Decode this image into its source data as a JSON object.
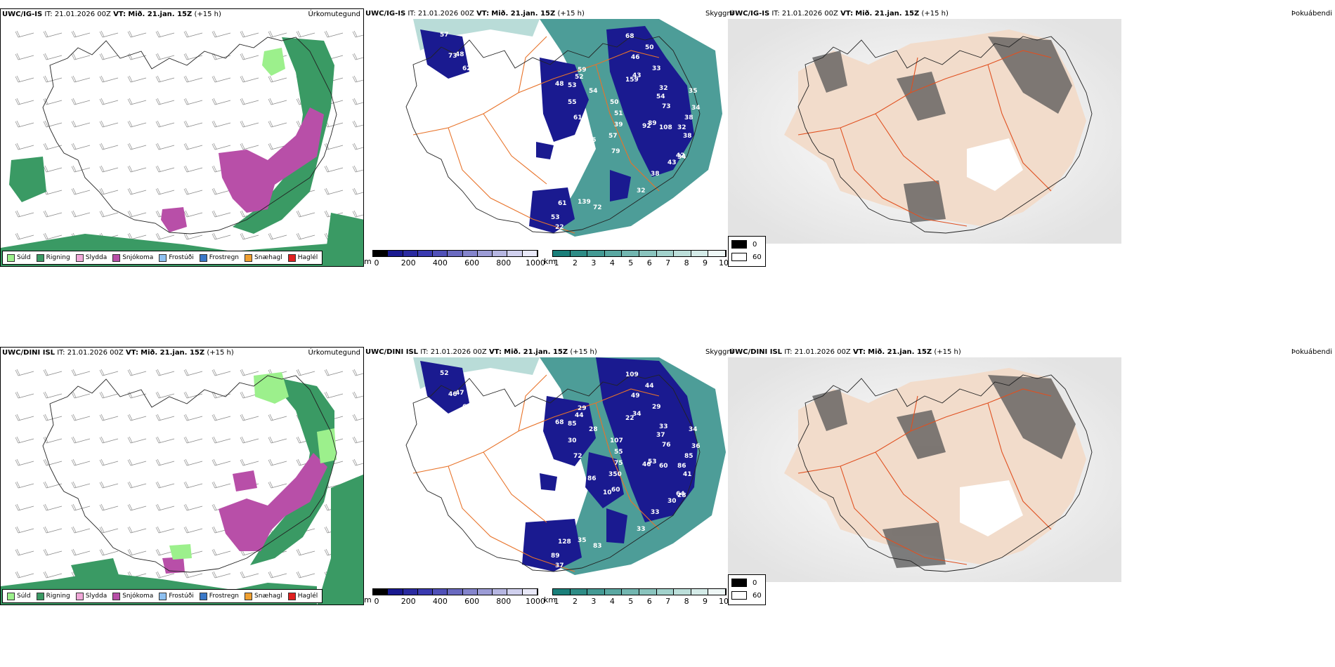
{
  "rows": [
    {
      "model": "UWC/IG-IS",
      "it": "IT: 21.01.2026 00Z",
      "vt_label": "VT:",
      "vt": "Mið. 21.jan. 15Z",
      "lead": "(+15 h)"
    },
    {
      "model": "UWC/DINI ISL",
      "it": "IT: 21.01.2026 00Z",
      "vt_label": "VT:",
      "vt": "Mið. 21.jan. 15Z",
      "lead": "(+15 h)"
    }
  ],
  "panel_titles": {
    "precip": "Úrkomutegund",
    "visibility": "Skyggni",
    "fog": "Þokuábendi"
  },
  "precip_legend": [
    {
      "label": "Súld",
      "color": "#9cf08c"
    },
    {
      "label": "Rigning",
      "color": "#3a9a64"
    },
    {
      "label": "Slydda",
      "color": "#f0a8d8"
    },
    {
      "label": "Snjókoma",
      "color": "#b84fa8"
    },
    {
      "label": "Frostúði",
      "color": "#8ec0f0"
    },
    {
      "label": "Frostregn",
      "color": "#3a78c8"
    },
    {
      "label": "Snæhagl",
      "color": "#f0a030"
    },
    {
      "label": "Haglél",
      "color": "#e02020"
    }
  ],
  "cloud_base_bar": {
    "unit": "m",
    "ticks": [
      "0",
      "200",
      "400",
      "600",
      "800",
      "1000"
    ],
    "colors": [
      "#000000",
      "#1a1a90",
      "#2a2aa0",
      "#3a3ab0",
      "#5050b8",
      "#6a6ac0",
      "#8484cc",
      "#9c9cd6",
      "#b6b6e2",
      "#d0d0ee",
      "#e8e8f8"
    ]
  },
  "visibility_bar": {
    "unit": "km",
    "ticks": [
      "1",
      "2",
      "3",
      "4",
      "5",
      "6",
      "7",
      "8",
      "9",
      "10"
    ],
    "colors": [
      "#1a7f7a",
      "#2e8c86",
      "#449a94",
      "#5aa8a2",
      "#72b6b0",
      "#8ac4be",
      "#a2d2cc",
      "#bcdfda",
      "#d4ebe8",
      "#eef7f6"
    ]
  },
  "fog_legend": [
    {
      "value": "0",
      "color": "#000000"
    },
    {
      "value": "60",
      "color": "#ffffff"
    }
  ],
  "cloud_labels": [
    [
      "57",
      "48",
      "62",
      "73",
      "68",
      "50",
      "46",
      "43",
      "33",
      "32",
      "35",
      "34",
      "54",
      "73",
      "38",
      "32",
      "38",
      "42",
      "34",
      "43",
      "38",
      "32",
      "59",
      "54",
      "55",
      "61",
      "48",
      "53",
      "52",
      "50",
      "51",
      "39",
      "92",
      "89",
      "108",
      "57",
      "70",
      "65",
      "61",
      "53",
      "22",
      "139",
      "72",
      "79",
      "159"
    ],
    [
      "52",
      "47",
      "67",
      "46",
      "109",
      "44",
      "49",
      "34",
      "29",
      "33",
      "34",
      "36",
      "37",
      "76",
      "85",
      "86",
      "41",
      "64",
      "28",
      "30",
      "33",
      "33",
      "29",
      "28",
      "30",
      "72",
      "68",
      "85",
      "44",
      "107",
      "55",
      "75",
      "46",
      "53",
      "60",
      "350",
      "51",
      "86",
      "128",
      "89",
      "37",
      "35",
      "83",
      "60",
      "22",
      "10"
    ]
  ],
  "colors": {
    "rain": "#3a9a64",
    "snow": "#b84fa8",
    "drizzle": "#9cf08c",
    "cloud_low": "#1a1a90",
    "vis_sea": "#2e8c86",
    "roads": "#e8732a",
    "fog_land": "#f2dccb"
  }
}
